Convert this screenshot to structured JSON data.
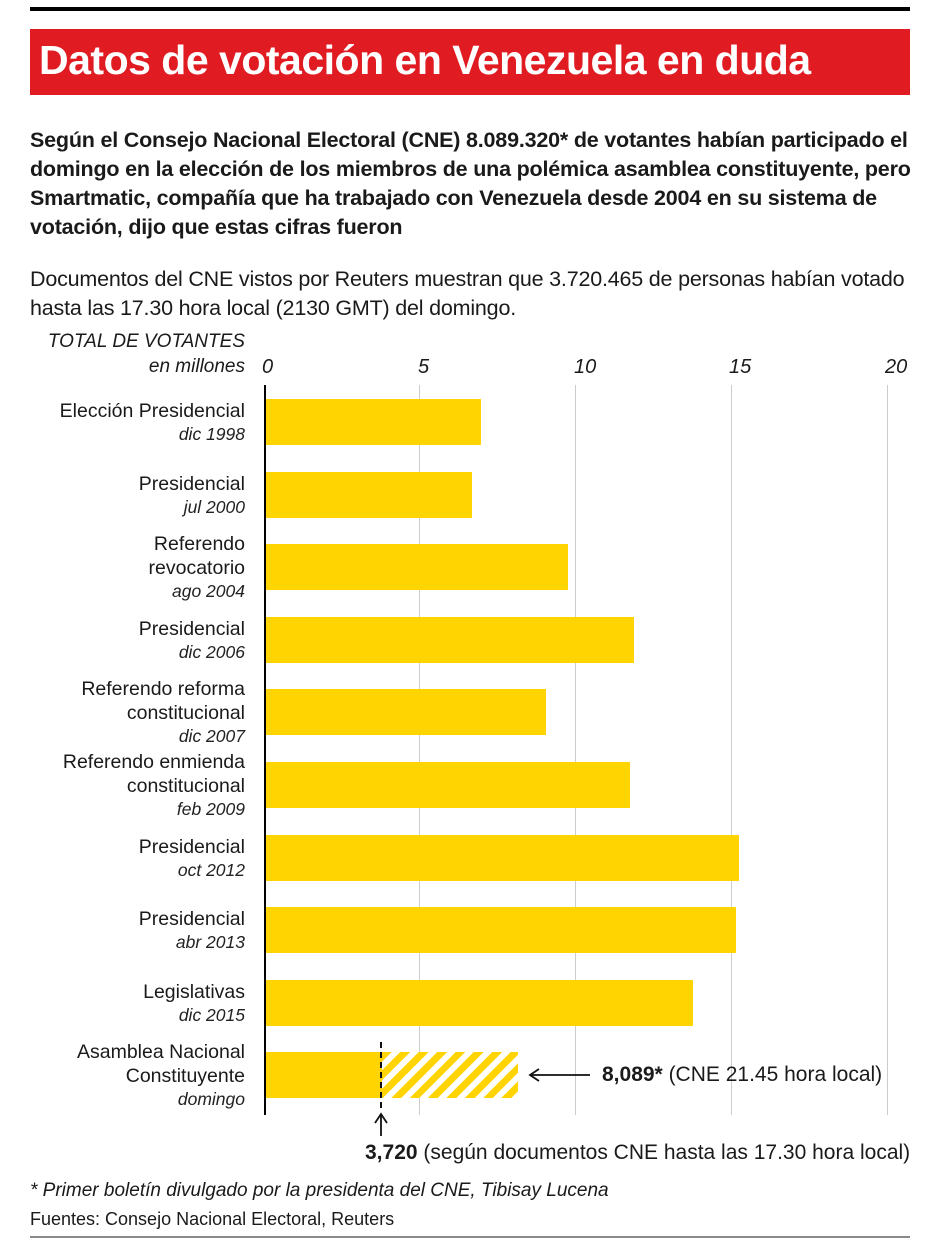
{
  "page": {
    "title": "Datos de votación en Venezuela en duda",
    "lead_paragraph": "Según el Consejo Nacional Electoral (CNE) 8.089.320* de votantes habían participado el domingo en la elección de los miembros de una polémica asamblea constituyente, pero Smartmatic, compañía que ha trabajado con Venezuela desde 2004 en su sistema de votación, dijo que estas cifras fueron",
    "second_paragraph": "Documentos del CNE vistos por Reuters muestran que 3.720.465 de personas habían votado hasta las 17.30 hora local (2130 GMT) del domingo.",
    "footnote": "* Primer boletín divulgado por la presidenta del CNE, Tibisay Lucena",
    "source": "Fuentes: Consejo Nacional Electoral, Reuters"
  },
  "colors": {
    "banner_red": "#E01B22",
    "bar_yellow": "#FFD400",
    "gridline_gray": "#CCCCCC"
  },
  "chart_data": {
    "type": "bar",
    "orientation": "horizontal",
    "header_title": "TOTAL DE VOTANTES",
    "header_subtitle": "en millones",
    "xlabel": "millones de votantes",
    "xlim": [
      0,
      20
    ],
    "x_ticks": [
      0,
      5,
      10,
      15,
      20
    ],
    "grid": true,
    "legend": "none",
    "rows": [
      {
        "label_lines": [
          "Elección Presidencial"
        ],
        "date": "dic 1998",
        "value": 6.9
      },
      {
        "label_lines": [
          "Presidencial"
        ],
        "date": "jul 2000",
        "value": 6.6
      },
      {
        "label_lines": [
          "Referendo",
          "revocatorio"
        ],
        "date": "ago 2004",
        "value": 9.7
      },
      {
        "label_lines": [
          "Presidencial"
        ],
        "date": "dic 2006",
        "value": 11.8
      },
      {
        "label_lines": [
          "Referendo reforma",
          "constitucional"
        ],
        "date": "dic 2007",
        "value": 9.0
      },
      {
        "label_lines": [
          "Referendo enmienda",
          "constitucional"
        ],
        "date": "feb 2009",
        "value": 11.7
      },
      {
        "label_lines": [
          "Presidencial"
        ],
        "date": "oct 2012",
        "value": 15.2
      },
      {
        "label_lines": [
          "Presidencial"
        ],
        "date": "abr 2013",
        "value": 15.1
      },
      {
        "label_lines": [
          "Legislativas"
        ],
        "date": "dic 2015",
        "value": 13.7
      },
      {
        "label_lines": [
          "Asamblea Nacional",
          "Constituyente"
        ],
        "date": "domingo",
        "value": 8.089,
        "solid_value": 3.72,
        "hatched": true
      }
    ],
    "annotations": {
      "cne_final": {
        "value_label": "8,089*",
        "text": " (CNE 21.45 hora local)",
        "points_to_millions": 8.089
      },
      "cne_partial": {
        "value_label": "3,720",
        "text": " (según documentos CNE hasta las 17.30 hora local)",
        "points_to_millions": 3.72
      }
    }
  }
}
